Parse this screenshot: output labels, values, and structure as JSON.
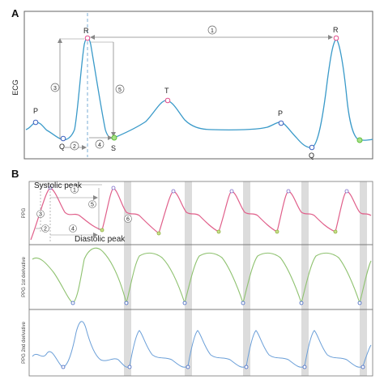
{
  "panel_a": {
    "label": "A",
    "ylabel": "ECG",
    "points": [
      "P",
      "Q",
      "R",
      "S",
      "T",
      "P",
      "Q",
      "R"
    ],
    "intervals": [
      "①",
      "②",
      "③",
      "④",
      "⑤"
    ]
  },
  "panel_b": {
    "label": "B",
    "ppg": {
      "ylabel": "PPG",
      "systolic_label": "Systolic peak",
      "diastolic_label": "Diastolic peak",
      "intervals": [
        "①",
        "②",
        "③",
        "④",
        "⑤",
        "⑥"
      ]
    },
    "d1": {
      "ylabel": "PPG 1st derivative"
    },
    "d2": {
      "ylabel": "PPG 2nd derivative"
    }
  },
  "colors": {
    "ecg": "#3a9ac9",
    "ppg": "#e05f8a",
    "d1": "#8fc270",
    "d2": "#6b9fd8",
    "marker_r": "#e24a8a",
    "marker_q": "#3a5fbf",
    "marker_s": "#5fbf3a",
    "band": "#d9d9d9"
  }
}
